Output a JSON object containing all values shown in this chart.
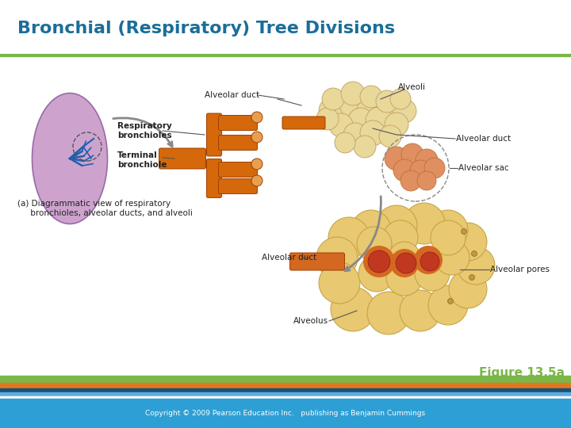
{
  "title": "Bronchial (Respiratory) Tree Divisions",
  "title_color": "#1a6e99",
  "title_fontsize": 16,
  "title_bold": true,
  "figure_label": "Figure 13.5a",
  "figure_label_color": "#7ab648",
  "figure_label_fontsize": 11,
  "copyright_text": "Copyright © 2009 Pearson Education Inc.   publishing as Benjamin Cummings",
  "copyright_color": "#ffffff",
  "copyright_fontsize": 6.5,
  "background_color": "#ffffff",
  "green_stripe_color": "#7ab648",
  "orange_stripe_color": "#e07820",
  "dark_blue_stripe_color": "#1a5276",
  "light_blue_stripe_color": "#5dade2",
  "bottom_bar_color": "#2e9fd4",
  "title_underline_color": "#7ab648",
  "label_fontsize": 7,
  "label_color": "#222222",
  "lung_color": "#c899c8",
  "lung_edge_color": "#9060a0",
  "bronchiole_color": "#d4680a",
  "bronchiole_edge": "#a04000",
  "alveoli_color": "#e8d89a",
  "alveoli_edge": "#c0a060",
  "alveolar_sac_color": "#e09060",
  "alveolar_sac_edge": "#c07040",
  "lower_alveoli_color": "#e8c870",
  "lower_alveoli_edge": "#c0a040",
  "lower_orange_color": "#d46820",
  "lower_red_color": "#c03820",
  "arrow_color": "#888888"
}
